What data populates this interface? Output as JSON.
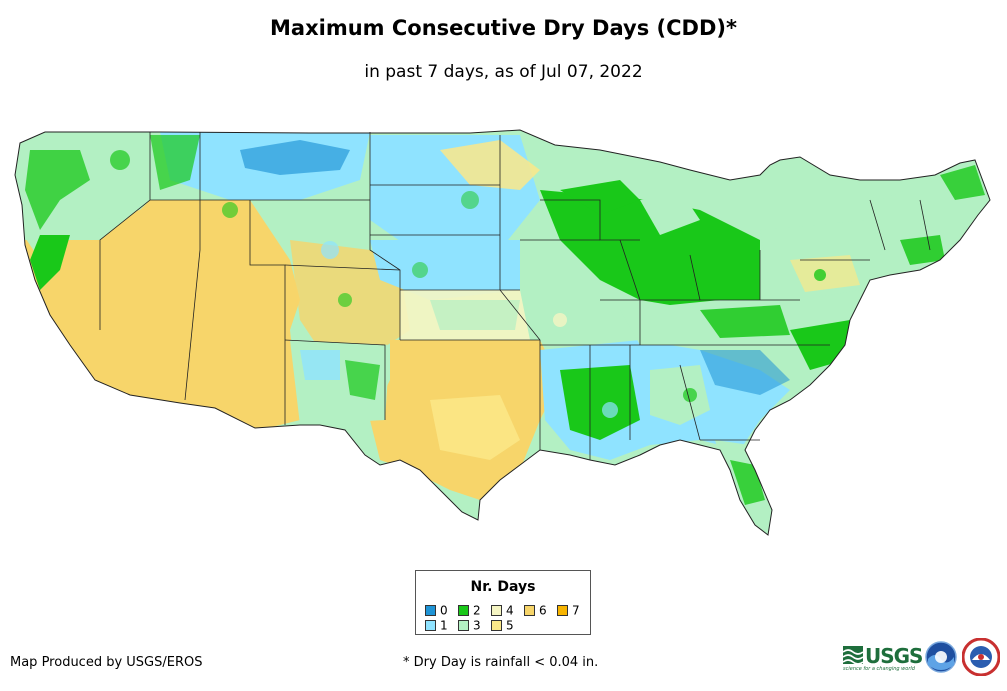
{
  "header": {
    "title": "Maximum Consecutive Dry Days (CDD)*",
    "subtitle": "in past 7 days, as of Jul 07, 2022"
  },
  "legend": {
    "title": "Nr. Days",
    "items": [
      {
        "label": "0",
        "color": "#1f94d6"
      },
      {
        "label": "1",
        "color": "#8fe3ff"
      },
      {
        "label": "2",
        "color": "#19c819"
      },
      {
        "label": "3",
        "color": "#b3f0c3"
      },
      {
        "label": "4",
        "color": "#f5f5c3"
      },
      {
        "label": "5",
        "color": "#fbe889"
      },
      {
        "label": "6",
        "color": "#f7d56a"
      },
      {
        "label": "7",
        "color": "#f7b400"
      }
    ]
  },
  "map": {
    "palette": {
      "dry_west": "#f7d56a",
      "green": "#19c819",
      "mint": "#b3f0c3",
      "sky": "#8fe3ff",
      "deep_blue": "#1f94d6",
      "pale_yellow": "#f5f5c3",
      "yellow": "#fbe889",
      "border": "#222222"
    }
  },
  "footer": {
    "credit": "Map Produced by USGS/EROS",
    "footnote": "* Dry Day is rainfall < 0.04 in.",
    "usgs_logo": "USGS",
    "usgs_tagline": "science for a changing world"
  }
}
